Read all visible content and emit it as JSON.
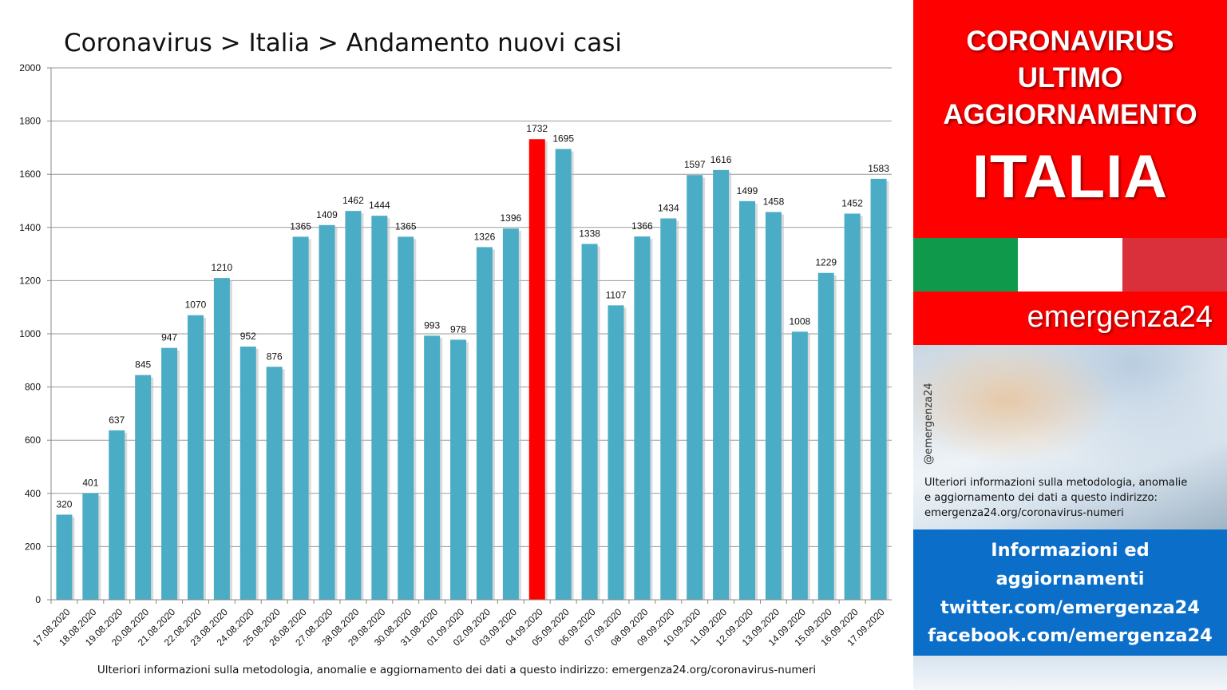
{
  "title": "Coronavirus > Italia > Andamento nuovi casi",
  "footer_note": "Ulteriori informazioni sulla metodologia, anomalie e aggiornamento dei dati a questo indirizzo: emergenza24.org/coronavirus-numeri",
  "chart_data": {
    "type": "bar",
    "title": "Coronavirus > Italia > Andamento nuovi casi",
    "xlabel": "",
    "ylabel": "",
    "ylim": [
      0,
      2000
    ],
    "yticks": [
      0,
      200,
      400,
      600,
      800,
      1000,
      1200,
      1400,
      1600,
      1800,
      2000
    ],
    "grid": true,
    "categories": [
      "17.08.2020",
      "18.08.2020",
      "19.08.2020",
      "20.08.2020",
      "21.08.2020",
      "22.08.2020",
      "23.08.2020",
      "24.08.2020",
      "25.08.2020",
      "26.08.2020",
      "27.08.2020",
      "28.08.2020",
      "29.08.2020",
      "30.08.2020",
      "31.08.2020",
      "01.09.2020",
      "02.09.2020",
      "03.09.2020",
      "04.09.2020",
      "05.09.2020",
      "06.09.2020",
      "07.09.2020",
      "08.09.2020",
      "09.09.2020",
      "10.09.2020",
      "11.09.2020",
      "12.09.2020",
      "13.09.2020",
      "14.09.2020",
      "15.09.2020",
      "16.09.2020",
      "17.09.2020"
    ],
    "values": [
      320,
      401,
      637,
      845,
      947,
      1070,
      1210,
      952,
      876,
      1365,
      1409,
      1462,
      1444,
      1365,
      993,
      978,
      1326,
      1396,
      1732,
      1695,
      1338,
      1107,
      1366,
      1434,
      1597,
      1616,
      1499,
      1458,
      1008,
      1229,
      1452,
      1583
    ],
    "bar_color": "#4bacc6",
    "highlight": {
      "category": "04.09.2020",
      "color": "#ff0000"
    }
  },
  "side_panel": {
    "line1": "CORONAVIRUS",
    "line2": "ULTIMO",
    "line3": "AGGIORNAMENTO",
    "line4": "ITALIA",
    "brand": "emergenza24",
    "handle": "@emergenza24",
    "note_lines": [
      "Ulteriori informazioni sulla metodologia, anomalie",
      "e aggiornamento dei dati a questo indirizzo:",
      "emergenza24.org/coronavirus-numeri"
    ],
    "info_lines": [
      "Informazioni ed",
      "aggiornamenti",
      "twitter.com/emergenza24",
      "facebook.com/emergenza24"
    ],
    "colors": {
      "panel_red": "#ff0000",
      "info_blue": "#0b6fc9",
      "flag_green": "#0e9a4a",
      "flag_white": "#ffffff",
      "flag_red": "#d9303b"
    }
  }
}
